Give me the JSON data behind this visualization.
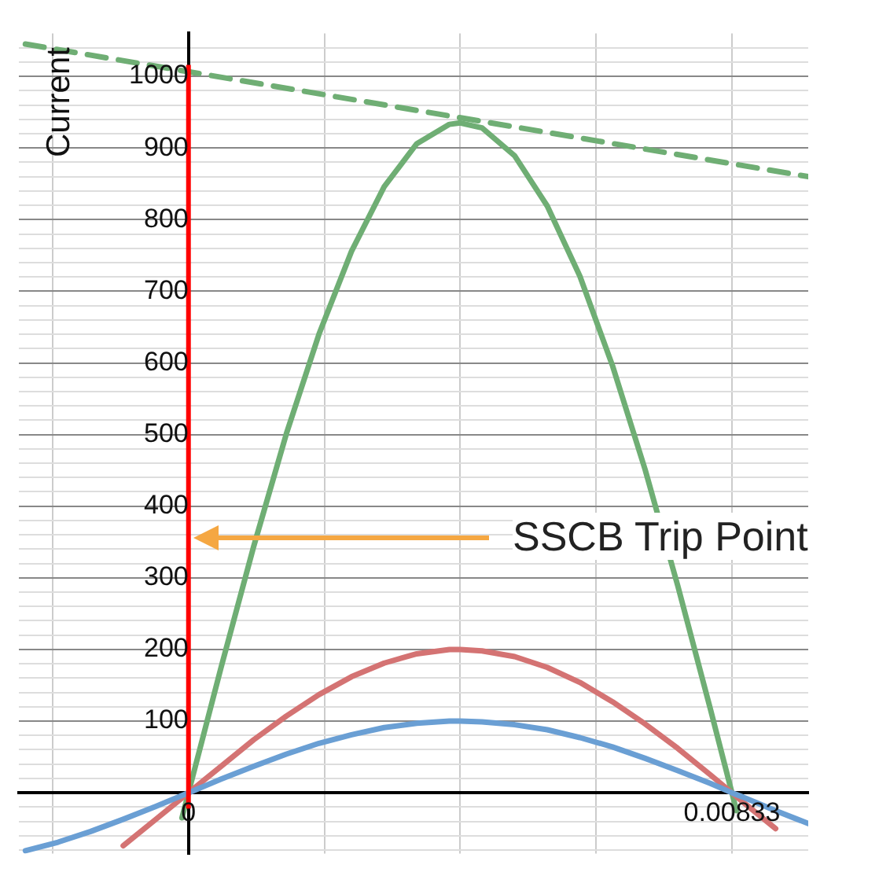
{
  "chart_data": {
    "type": "line",
    "ylabel": "Current",
    "xlim": [
      -0.0026,
      0.0095
    ],
    "ylim": [
      -85,
      1060
    ],
    "xticks": [
      {
        "value": -0.002083,
        "label": null
      },
      0,
      {
        "value": 0.002083,
        "label": null
      },
      {
        "value": 0.004167,
        "label": null
      },
      {
        "value": 0.00625,
        "label": null
      },
      0.00833
    ],
    "yticks": [
      {
        "value": -80,
        "label": null
      },
      {
        "value": -60,
        "label": null
      },
      {
        "value": -40,
        "label": null
      },
      {
        "value": -20,
        "label": null
      },
      {
        "value": 0,
        "label": null
      },
      {
        "value": 20,
        "label": null
      },
      {
        "value": 40,
        "label": null
      },
      {
        "value": 60,
        "label": null
      },
      {
        "value": 80,
        "label": null
      },
      100,
      {
        "value": 120,
        "label": null
      },
      {
        "value": 140,
        "label": null
      },
      {
        "value": 160,
        "label": null
      },
      {
        "value": 180,
        "label": null
      },
      200,
      {
        "value": 220,
        "label": null
      },
      {
        "value": 240,
        "label": null
      },
      {
        "value": 260,
        "label": null
      },
      {
        "value": 280,
        "label": null
      },
      300,
      {
        "value": 320,
        "label": null
      },
      {
        "value": 340,
        "label": null
      },
      {
        "value": 360,
        "label": null
      },
      {
        "value": 380,
        "label": null
      },
      400,
      {
        "value": 420,
        "label": null
      },
      {
        "value": 440,
        "label": null
      },
      {
        "value": 460,
        "label": null
      },
      {
        "value": 480,
        "label": null
      },
      500,
      {
        "value": 520,
        "label": null
      },
      {
        "value": 540,
        "label": null
      },
      {
        "value": 560,
        "label": null
      },
      {
        "value": 580,
        "label": null
      },
      600,
      {
        "value": 620,
        "label": null
      },
      {
        "value": 640,
        "label": null
      },
      {
        "value": 660,
        "label": null
      },
      {
        "value": 680,
        "label": null
      },
      700,
      {
        "value": 720,
        "label": null
      },
      {
        "value": 740,
        "label": null
      },
      {
        "value": 760,
        "label": null
      },
      {
        "value": 780,
        "label": null
      },
      800,
      {
        "value": 820,
        "label": null
      },
      {
        "value": 840,
        "label": null
      },
      {
        "value": 860,
        "label": null
      },
      {
        "value": 880,
        "label": null
      },
      900,
      {
        "value": 920,
        "label": null
      },
      {
        "value": 940,
        "label": null
      },
      {
        "value": 960,
        "label": null
      },
      {
        "value": 980,
        "label": null
      },
      1000,
      {
        "value": 1020,
        "label": null
      },
      {
        "value": 1040,
        "label": null
      }
    ],
    "grid": true,
    "legend": false,
    "marker": "none",
    "series": [
      {
        "color": "#6a9fd4",
        "x": [
          -0.0025,
          -0.002,
          -0.0015,
          -0.001,
          -0.0005,
          0,
          0.0005,
          0.001,
          0.0015,
          0.002,
          0.0025,
          0.003,
          0.0035,
          0.004,
          0.004167,
          0.0045,
          0.005,
          0.0055,
          0.006,
          0.0065,
          0.007,
          0.0075,
          0.008,
          0.00833,
          0.0085,
          0.009,
          0.0095
        ],
        "values": [
          -81,
          -69,
          -54,
          -37,
          -19,
          0,
          19,
          37,
          54,
          69,
          81,
          91,
          97,
          100,
          100,
          99,
          95,
          88,
          77,
          64,
          48,
          31,
          13,
          0,
          -6,
          -25,
          -43
        ]
      },
      {
        "color": "#d47373",
        "x": [
          -0.001,
          -0.0005,
          0,
          0.0005,
          0.001,
          0.0015,
          0.002,
          0.0025,
          0.003,
          0.0035,
          0.004,
          0.004167,
          0.0045,
          0.005,
          0.0055,
          0.006,
          0.0065,
          0.007,
          0.0075,
          0.008,
          0.00833,
          0.0085,
          0.009
        ],
        "values": [
          -74,
          -37,
          0,
          37,
          74,
          107,
          137,
          162,
          181,
          194,
          200,
          200,
          198,
          190,
          175,
          154,
          127,
          96,
          62,
          25,
          0,
          -13,
          -50
        ]
      },
      {
        "color": "#6fae74",
        "x": [
          -0.0001,
          0,
          0.0005,
          0.001,
          0.0015,
          0.002,
          0.0025,
          0.003,
          0.0035,
          0.004,
          0.004167,
          0.0045,
          0.005,
          0.0055,
          0.006,
          0.0065,
          0.007,
          0.0075,
          0.008,
          0.00833,
          0.0084
        ],
        "values": [
          -35,
          0,
          175,
          344,
          501,
          640,
          756,
          846,
          906,
          933,
          935,
          928,
          889,
          819,
          721,
          596,
          451,
          289,
          117,
          0,
          -25
        ]
      },
      {
        "color": "#6fae74",
        "line_style": "dashed",
        "x": [
          -0.0025,
          0.0095
        ],
        "values": [
          1045,
          860
        ]
      }
    ],
    "ref_lines": [
      {
        "axis": "x",
        "value": 0,
        "color": "#ff0000"
      }
    ],
    "annotations": [
      "SSCB Trip Point"
    ]
  }
}
